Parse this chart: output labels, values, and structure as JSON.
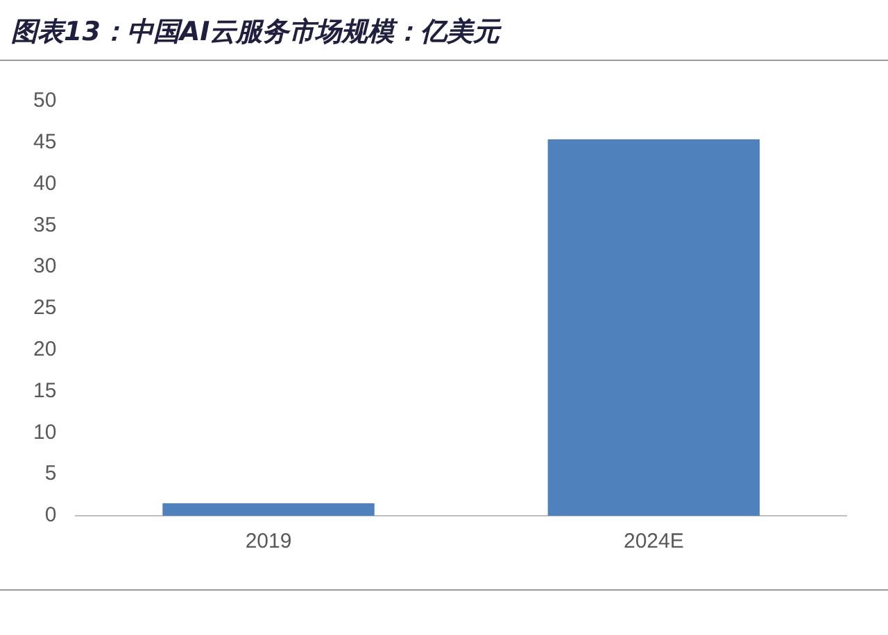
{
  "chart_data": {
    "type": "bar",
    "title": "图表13：中国AI云服务市场规模：亿美元",
    "categories": [
      "2019",
      "2024E"
    ],
    "values": [
      1.5,
      45.4
    ],
    "color": "#4f81bd",
    "ylim": [
      0,
      50
    ],
    "yticks": [
      0,
      5,
      10,
      15,
      20,
      25,
      30,
      35,
      40,
      45,
      50
    ],
    "grid": false,
    "legend": false
  }
}
